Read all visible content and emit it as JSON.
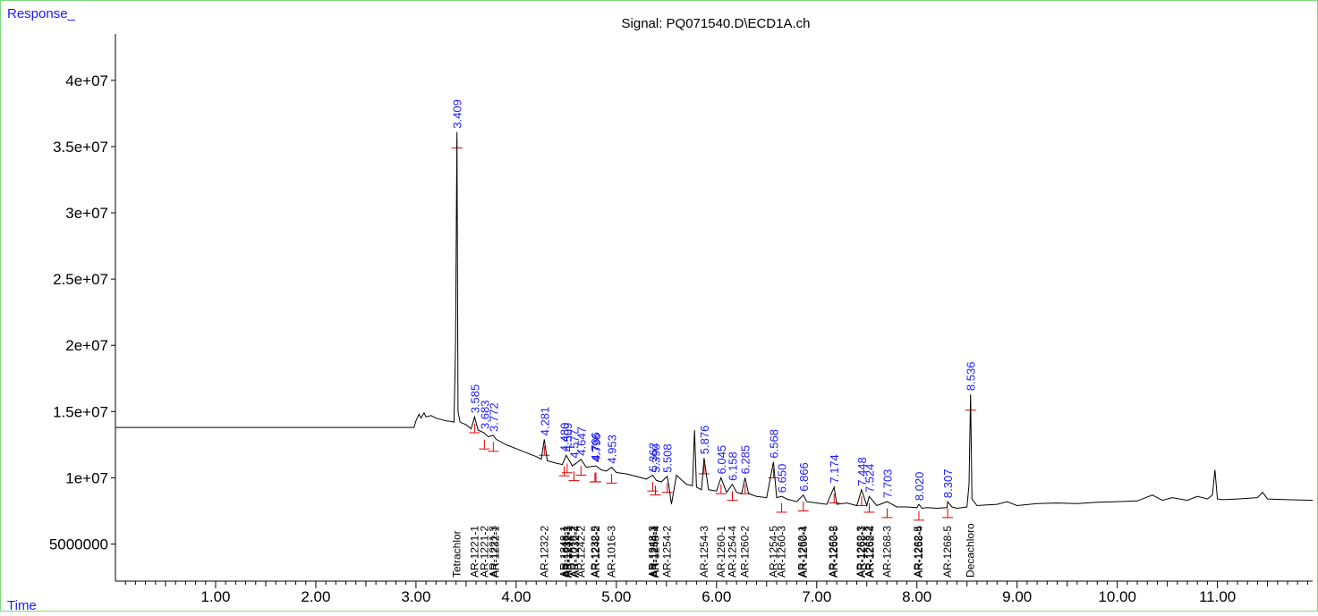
{
  "chart_data": {
    "type": "line",
    "title": "Signal: PQ071540.D\\ECD1A.ch",
    "ylabel": "Response_",
    "xlabel": "Time",
    "xlim": [
      0.0,
      11.95
    ],
    "ylim": [
      2200000,
      43500000
    ],
    "x_ticks": [
      "1.00",
      "2.00",
      "3.00",
      "4.00",
      "5.00",
      "6.00",
      "7.00",
      "8.00",
      "9.00",
      "10.00",
      "11.00"
    ],
    "y_ticks": [
      {
        "value": 5000000,
        "label": "5000000"
      },
      {
        "value": 10000000,
        "label": "1e+07"
      },
      {
        "value": 15000000,
        "label": "1.5e+07"
      },
      {
        "value": 20000000,
        "label": "2e+07"
      },
      {
        "value": 25000000,
        "label": "2.5e+07"
      },
      {
        "value": 30000000,
        "label": "3e+07"
      },
      {
        "value": 35000000,
        "label": "3.5e+07"
      },
      {
        "value": 40000000,
        "label": "4e+07"
      }
    ],
    "trace": {
      "x": [
        0.0,
        2.98,
        3.0,
        3.03,
        3.05,
        3.08,
        3.1,
        3.15,
        3.2,
        3.25,
        3.3,
        3.35,
        3.38,
        3.395,
        3.409,
        3.42,
        3.44,
        3.5,
        3.55,
        3.585,
        3.62,
        3.68,
        3.72,
        3.772,
        3.8,
        3.9,
        4.0,
        4.1,
        4.2,
        4.25,
        4.281,
        4.31,
        4.4,
        4.46,
        4.5,
        4.56,
        4.6,
        4.647,
        4.7,
        4.796,
        4.85,
        4.9,
        4.953,
        5.0,
        5.1,
        5.2,
        5.3,
        5.362,
        5.4,
        5.45,
        5.508,
        5.52,
        5.55,
        5.6,
        5.7,
        5.76,
        5.78,
        5.8,
        5.85,
        5.876,
        5.92,
        6.0,
        6.045,
        6.1,
        6.158,
        6.2,
        6.25,
        6.285,
        6.32,
        6.4,
        6.5,
        6.568,
        6.6,
        6.65,
        6.7,
        6.8,
        6.866,
        6.9,
        7.0,
        7.1,
        7.174,
        7.2,
        7.3,
        7.4,
        7.448,
        7.5,
        7.524,
        7.6,
        7.703,
        7.8,
        7.9,
        8.0,
        8.02,
        8.05,
        8.1,
        8.2,
        8.3,
        8.307,
        8.35,
        8.4,
        8.5,
        8.52,
        8.536,
        8.55,
        8.6,
        8.7,
        8.8,
        8.9,
        9.0,
        9.2,
        9.4,
        9.6,
        9.8,
        10.0,
        10.2,
        10.35,
        10.45,
        10.55,
        10.7,
        10.8,
        10.9,
        10.95,
        10.975,
        11.0,
        11.05,
        11.2,
        11.4,
        11.45,
        11.5,
        11.7,
        11.95
      ],
      "y": [
        13800000,
        13800000,
        14300000,
        14800000,
        14500000,
        14900000,
        14600000,
        14700000,
        14500000,
        14400000,
        14300000,
        14250000,
        14200000,
        20000000,
        36100000,
        15000000,
        14200000,
        14000000,
        13700000,
        14600000,
        13600000,
        13400000,
        13100000,
        13200000,
        12900000,
        12500000,
        12200000,
        11900000,
        11600000,
        11400000,
        12900000,
        11300000,
        11100000,
        11000000,
        11700000,
        10900000,
        11100000,
        11400000,
        10800000,
        10900000,
        10600000,
        10500000,
        10800000,
        10400000,
        10300000,
        10100000,
        9900000,
        10200000,
        9800000,
        9700000,
        10100000,
        9600000,
        8000000,
        10200000,
        9500000,
        9400000,
        13600000,
        9300000,
        9100000,
        11500000,
        9100000,
        9000000,
        10000000,
        8900000,
        9500000,
        8900000,
        8800000,
        10000000,
        8800000,
        8600000,
        8500000,
        11200000,
        8500000,
        8600000,
        8400000,
        8200000,
        8700000,
        8200000,
        8100000,
        8000000,
        9300000,
        8000000,
        8100000,
        7900000,
        9100000,
        7900000,
        8600000,
        7900000,
        8200000,
        7800000,
        7800000,
        7750000,
        8000000,
        7700000,
        7750000,
        7700000,
        7750000,
        8200000,
        7800000,
        7700000,
        7800000,
        9500000,
        16300000,
        8400000,
        7900000,
        7950000,
        8000000,
        8200000,
        7900000,
        8050000,
        8100000,
        8050000,
        8150000,
        8200000,
        8250000,
        8700000,
        8300000,
        8500000,
        8300000,
        8600000,
        8400000,
        8700000,
        10600000,
        8400000,
        8350000,
        8400000,
        8500000,
        8900000,
        8400000,
        8350000,
        8300000
      ]
    },
    "peak_labels": [
      {
        "rt": "3.409",
        "x": 3.409,
        "y": 36100000
      },
      {
        "rt": "3.585",
        "x": 3.585,
        "y": 14600000
      },
      {
        "rt": "3.683",
        "x": 3.683,
        "y": 13400000
      },
      {
        "rt": "3.772",
        "x": 3.772,
        "y": 13200000
      },
      {
        "rt": "4.281",
        "x": 4.281,
        "y": 12900000
      },
      {
        "rt": "4.480",
        "x": 4.48,
        "y": 11700000
      },
      {
        "rt": "4.509",
        "x": 4.509,
        "y": 11700000
      },
      {
        "rt": "4.577",
        "x": 4.577,
        "y": 11200000
      },
      {
        "rt": "4.647",
        "x": 4.647,
        "y": 11400000
      },
      {
        "rt": "4.786",
        "x": 4.786,
        "y": 11000000
      },
      {
        "rt": "4.796",
        "x": 4.796,
        "y": 10900000
      },
      {
        "rt": "4.953",
        "x": 4.953,
        "y": 10800000
      },
      {
        "rt": "5.362",
        "x": 5.362,
        "y": 10200000
      },
      {
        "rt": "5.390",
        "x": 5.39,
        "y": 10100000
      },
      {
        "rt": "5.508",
        "x": 5.508,
        "y": 10100000
      },
      {
        "rt": "5.876",
        "x": 5.876,
        "y": 11500000
      },
      {
        "rt": "6.045",
        "x": 6.045,
        "y": 10000000
      },
      {
        "rt": "6.158",
        "x": 6.158,
        "y": 9500000
      },
      {
        "rt": "6.285",
        "x": 6.285,
        "y": 10000000
      },
      {
        "rt": "6.568",
        "x": 6.568,
        "y": 11200000
      },
      {
        "rt": "6.650",
        "x": 6.65,
        "y": 8600000
      },
      {
        "rt": "6.866",
        "x": 6.866,
        "y": 8700000
      },
      {
        "rt": "7.174",
        "x": 7.174,
        "y": 9300000
      },
      {
        "rt": "7.448",
        "x": 7.448,
        "y": 9100000
      },
      {
        "rt": "7.524",
        "x": 7.524,
        "y": 8600000
      },
      {
        "rt": "7.703",
        "x": 7.703,
        "y": 8200000
      },
      {
        "rt": "8.020",
        "x": 8.02,
        "y": 8000000
      },
      {
        "rt": "8.307",
        "x": 8.307,
        "y": 8200000
      },
      {
        "rt": "8.536",
        "x": 8.536,
        "y": 16300000
      }
    ],
    "compound_labels": [
      {
        "name": "Tetrachlor",
        "x": 3.409
      },
      {
        "name": "AR-1221-1",
        "x": 3.585
      },
      {
        "name": "AR-1221-2",
        "x": 3.683
      },
      {
        "name": "AR-1221-3",
        "x": 3.772
      },
      {
        "name": "AR-1232-1",
        "x": 3.79
      },
      {
        "name": "AR-1232-2",
        "x": 4.281
      },
      {
        "name": "AR-1248-1",
        "x": 4.48
      },
      {
        "name": "AR-1016-1",
        "x": 4.5
      },
      {
        "name": "AR-1232-3",
        "x": 4.509
      },
      {
        "name": "AR-1242-1",
        "x": 4.52
      },
      {
        "name": "AR-1016-2",
        "x": 4.577
      },
      {
        "name": "AR-1232-4",
        "x": 4.59
      },
      {
        "name": "AR-1242-2",
        "x": 4.647
      },
      {
        "name": "AR-1232-5",
        "x": 4.786
      },
      {
        "name": "AR-1248-2",
        "x": 4.796
      },
      {
        "name": "AR-1016-3",
        "x": 4.953
      },
      {
        "name": "AR-1248-3",
        "x": 5.362
      },
      {
        "name": "AR-1254-1",
        "x": 5.375
      },
      {
        "name": "AR-1248-4",
        "x": 5.39
      },
      {
        "name": "AR-1254-2",
        "x": 5.508
      },
      {
        "name": "AR-1254-3",
        "x": 5.876
      },
      {
        "name": "AR-1260-1",
        "x": 6.045
      },
      {
        "name": "AR-1254-4",
        "x": 6.158
      },
      {
        "name": "AR-1260-2",
        "x": 6.285
      },
      {
        "name": "AR-1254-5",
        "x": 6.568
      },
      {
        "name": "AR-1260-3",
        "x": 6.65
      },
      {
        "name": "AR-1262-1",
        "x": 6.855
      },
      {
        "name": "AR-1260-4",
        "x": 6.866
      },
      {
        "name": "AR-1262-2",
        "x": 7.165
      },
      {
        "name": "AR-1260-5",
        "x": 7.174
      },
      {
        "name": "AR-1262-3",
        "x": 7.44
      },
      {
        "name": "AR-1268-1",
        "x": 7.448
      },
      {
        "name": "AR-1268-2",
        "x": 7.524
      },
      {
        "name": "AR-1262-4",
        "x": 7.535
      },
      {
        "name": "AR-1268-3",
        "x": 7.703
      },
      {
        "name": "AR-1262-5",
        "x": 8.01
      },
      {
        "name": "AR-1268-4",
        "x": 8.02
      },
      {
        "name": "AR-1268-5",
        "x": 8.307
      },
      {
        "name": "Decachloro",
        "x": 8.536
      }
    ]
  },
  "colors": {
    "trace": "#000000",
    "peak_label": "#1a1aff",
    "integration": "#e00000",
    "axis_label": "#1a1aff",
    "frame": "#7fd87f"
  }
}
